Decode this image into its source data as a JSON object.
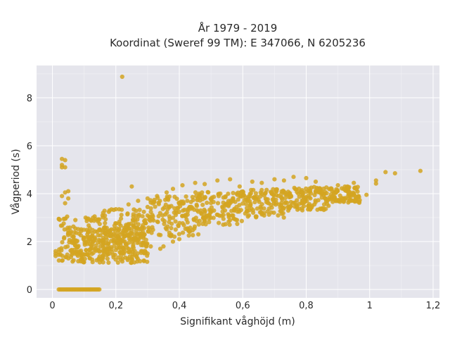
{
  "chart_data": {
    "type": "scatter",
    "title_line1": "År 1979 - 2019",
    "title_line2": "Koordinat (Sweref 99 TM): E 347066, N 6205236",
    "xlabel": "Signifikant våghöjd (m)",
    "ylabel": "Vågperiod (s)",
    "xlim": [
      -0.05,
      1.22
    ],
    "ylim": [
      -0.35,
      9.35
    ],
    "x_ticks": [
      0,
      0.2,
      0.4,
      0.6,
      0.8,
      1,
      1.2
    ],
    "x_tick_labels": [
      "0",
      "0,2",
      "0,4",
      "0,6",
      "0,8",
      "1",
      "1,2"
    ],
    "y_ticks": [
      0,
      2,
      4,
      6,
      8
    ],
    "y_tick_labels": [
      "0",
      "2",
      "4",
      "6",
      "8"
    ],
    "grid": true,
    "legend": "none",
    "marker_color": "#D4A421",
    "background_color": "#E5E5EC",
    "series": [
      {
        "points": [
          [
            0.22,
            8.88
          ],
          [
            1.16,
            4.95
          ],
          [
            1.08,
            4.85
          ],
          [
            1.05,
            4.9
          ],
          [
            1.02,
            4.55
          ],
          [
            1.02,
            4.42
          ],
          [
            0.99,
            3.95
          ],
          [
            0.95,
            4.45
          ],
          [
            0.93,
            4.3
          ],
          [
            0.9,
            4.35
          ],
          [
            0.88,
            4.2
          ],
          [
            0.85,
            4.05
          ],
          [
            0.03,
            5.45
          ],
          [
            0.03,
            5.1
          ],
          [
            0.03,
            5.2
          ],
          [
            0.04,
            5.4
          ],
          [
            0.04,
            5.1
          ],
          [
            0.04,
            4.05
          ],
          [
            0.05,
            3.8
          ],
          [
            0.03,
            3.9
          ],
          [
            0.04,
            3.6
          ],
          [
            0.05,
            4.1
          ],
          [
            0.01,
            1.6
          ],
          [
            0.01,
            1.5
          ],
          [
            0.01,
            1.4
          ],
          [
            0.02,
            1.55
          ],
          [
            0.02,
            1.45
          ],
          [
            0.16,
            3.2
          ],
          [
            0.18,
            3.3
          ],
          [
            0.2,
            3.35
          ],
          [
            0.24,
            3.55
          ],
          [
            0.25,
            4.3
          ],
          [
            0.27,
            3.7
          ],
          [
            0.3,
            3.8
          ],
          [
            0.33,
            3.9
          ],
          [
            0.36,
            4.05
          ],
          [
            0.38,
            4.2
          ],
          [
            0.41,
            4.35
          ],
          [
            0.45,
            4.45
          ],
          [
            0.48,
            4.4
          ],
          [
            0.52,
            4.55
          ],
          [
            0.56,
            4.6
          ],
          [
            0.59,
            4.3
          ],
          [
            0.63,
            4.5
          ],
          [
            0.66,
            4.45
          ],
          [
            0.7,
            4.6
          ],
          [
            0.73,
            4.55
          ],
          [
            0.76,
            4.7
          ],
          [
            0.8,
            4.65
          ],
          [
            0.83,
            4.5
          ],
          [
            0.17,
            1.6
          ],
          [
            0.18,
            1.5
          ],
          [
            0.2,
            1.65
          ],
          [
            0.22,
            1.55
          ],
          [
            0.24,
            1.7
          ],
          [
            0.26,
            1.45
          ],
          [
            0.28,
            1.6
          ],
          [
            0.3,
            1.5
          ],
          [
            0.31,
            1.8
          ],
          [
            0.34,
            1.7
          ],
          [
            0.35,
            1.8
          ],
          [
            0.38,
            2.0
          ],
          [
            0.4,
            2.1
          ],
          [
            0.43,
            2.25
          ],
          [
            0.46,
            2.3
          ]
        ],
        "bands": [
          {
            "x_from": 0.02,
            "x_to": 0.16,
            "y_from": 1.2,
            "y_to": 3.1
          },
          {
            "x_from": 0.05,
            "x_to": 0.3,
            "y_from": 1.1,
            "y_to": 2.6
          },
          {
            "x_from": 0.16,
            "x_to": 0.3,
            "y_from": 1.5,
            "y_to": 3.4
          },
          {
            "x_from": 0.3,
            "x_to": 0.45,
            "y_from": 2.2,
            "y_to": 3.9
          },
          {
            "x_from": 0.45,
            "x_to": 0.6,
            "y_from": 2.7,
            "y_to": 4.1
          },
          {
            "x_from": 0.6,
            "x_to": 0.75,
            "y_from": 3.0,
            "y_to": 4.2
          },
          {
            "x_from": 0.75,
            "x_to": 0.88,
            "y_from": 3.3,
            "y_to": 4.3
          },
          {
            "x_from": 0.88,
            "x_to": 0.97,
            "y_from": 3.6,
            "y_to": 4.3
          }
        ],
        "zero_line": {
          "x_from": 0.02,
          "x_to": 0.15,
          "y": 0
        }
      }
    ]
  }
}
